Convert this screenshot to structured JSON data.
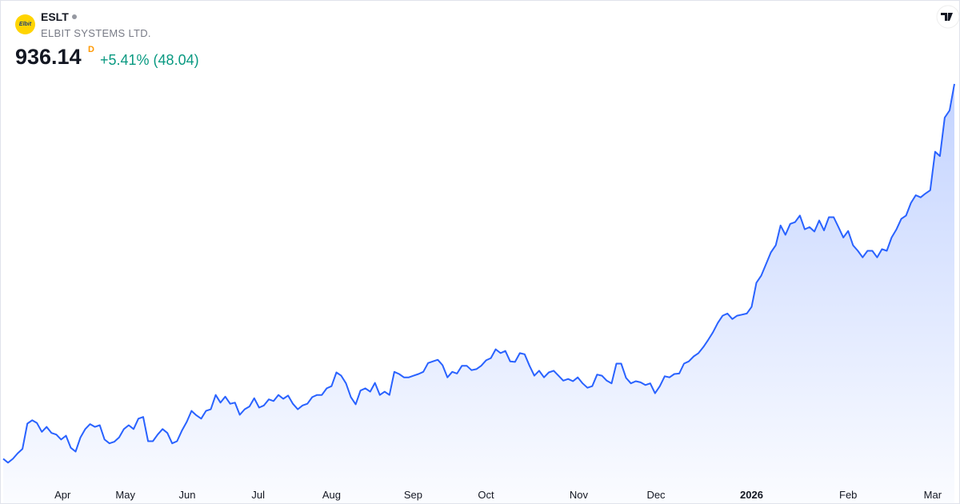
{
  "header": {
    "logo_text": "Elbit",
    "symbol": "ESLT",
    "name": "ELBIT SYSTEMS LTD.",
    "price": "936.14",
    "price_flag": "D",
    "change": "+5.41% (48.04)"
  },
  "chart_data": {
    "type": "area",
    "color": "#2962ff",
    "values": [
      255,
      248,
      255,
      265,
      273,
      319,
      325,
      320,
      304,
      313,
      302,
      299,
      290,
      297,
      275,
      268,
      294,
      309,
      318,
      313,
      316,
      290,
      283,
      286,
      294,
      309,
      316,
      309,
      328,
      331,
      287,
      287,
      299,
      309,
      302,
      283,
      287,
      306,
      322,
      342,
      334,
      328,
      342,
      345,
      371,
      357,
      368,
      355,
      357,
      335,
      345,
      350,
      365,
      348,
      352,
      363,
      360,
      371,
      364,
      370,
      355,
      345,
      352,
      355,
      367,
      371,
      371,
      383,
      387,
      412,
      406,
      392,
      367,
      354,
      379,
      383,
      377,
      393,
      371,
      377,
      371,
      413,
      409,
      403,
      403,
      406,
      409,
      413,
      429,
      432,
      435,
      425,
      403,
      413,
      410,
      424,
      424,
      416,
      418,
      424,
      434,
      438,
      454,
      447,
      451,
      432,
      431,
      447,
      445,
      424,
      406,
      415,
      403,
      412,
      415,
      406,
      397,
      400,
      396,
      403,
      392,
      384,
      387,
      408,
      406,
      397,
      392,
      428,
      428,
      402,
      392,
      396,
      394,
      389,
      392,
      374,
      387,
      405,
      403,
      409,
      410,
      428,
      432,
      441,
      447,
      458,
      471,
      485,
      502,
      515,
      519,
      509,
      515,
      517,
      519,
      531,
      575,
      588,
      609,
      630,
      643,
      679,
      662,
      682,
      685,
      697,
      672,
      676,
      668,
      688,
      670,
      694,
      694,
      676,
      657,
      669,
      643,
      633,
      621,
      633,
      633,
      621,
      636,
      633,
      657,
      672,
      691,
      697,
      720,
      734,
      730,
      737,
      743,
      813,
      805,
      875,
      888.1,
      936.14
    ],
    "xlim": [
      0,
      197
    ],
    "ylim": [
      215,
      1000
    ],
    "xticks": [
      {
        "value": 12.3,
        "label": "Apr"
      },
      {
        "value": 25.3,
        "label": "May"
      },
      {
        "value": 38.1,
        "label": "Jun"
      },
      {
        "value": 52.8,
        "label": "Jul"
      },
      {
        "value": 68,
        "label": "Aug"
      },
      {
        "value": 84.9,
        "label": "Sep"
      },
      {
        "value": 100,
        "label": "Oct"
      },
      {
        "value": 119.2,
        "label": "Nov"
      },
      {
        "value": 135.2,
        "label": "Dec"
      },
      {
        "value": 155,
        "label": "2026"
      },
      {
        "value": 175,
        "label": "Feb"
      },
      {
        "value": 192.5,
        "label": "Mar"
      }
    ]
  }
}
